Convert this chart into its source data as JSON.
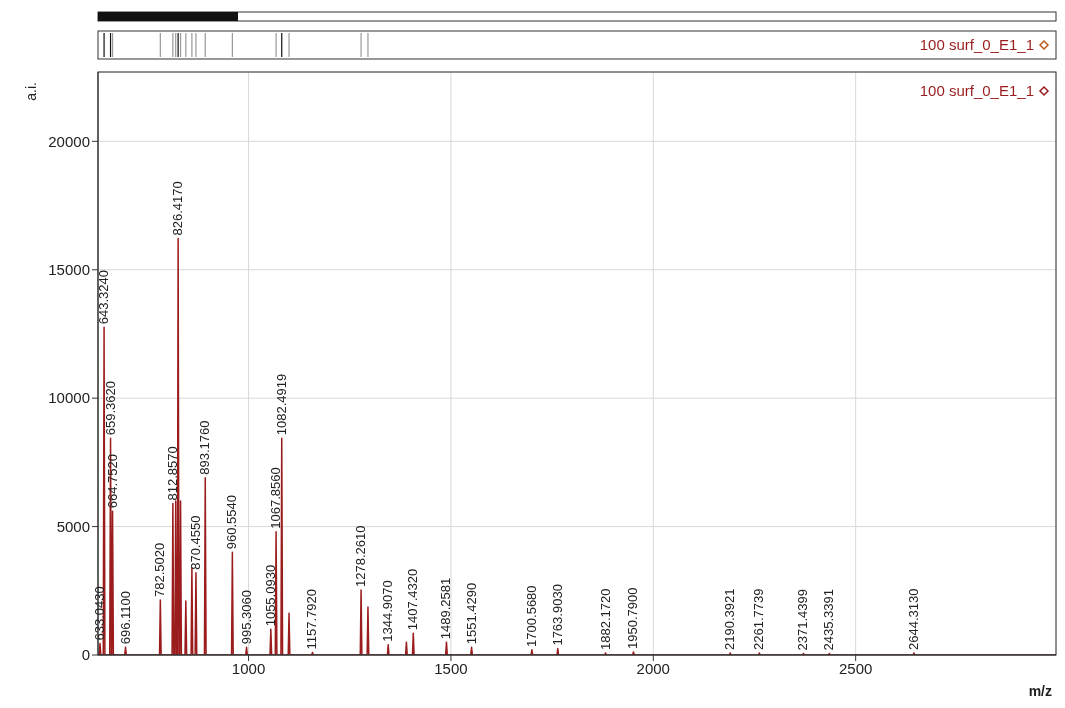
{
  "chart_data": {
    "type": "line",
    "xlabel": "m/z",
    "ylabel": "a.i.",
    "xlim": [
      628,
      2995
    ],
    "ylim": [
      0,
      22700
    ],
    "xticks": [
      1000,
      1500,
      2000,
      2500
    ],
    "yticks": [
      0,
      5000,
      10000,
      15000,
      20000
    ],
    "grid": true,
    "legend": "top right",
    "series": [
      {
        "name": "100 surf_0_E1_1",
        "color": "#9b1c1c",
        "x": [
          628,
          631,
          633,
          635,
          641,
          643,
          645,
          657,
          659,
          661,
          662,
          664,
          666,
          694,
          696,
          698,
          780,
          782,
          784,
          811,
          813,
          815,
          818,
          820,
          822,
          824,
          826,
          828,
          830,
          832,
          834,
          843,
          845,
          847,
          858,
          860,
          862,
          868,
          870,
          872,
          891,
          893,
          895,
          958,
          960,
          962,
          993,
          995,
          997,
          1053,
          1055,
          1057,
          1066,
          1068,
          1070,
          1080,
          1082,
          1084,
          1098,
          1100,
          1102,
          1156,
          1158,
          1160,
          1276,
          1278,
          1280,
          1293,
          1295,
          1297,
          1343,
          1345,
          1347,
          1388,
          1390,
          1392,
          1405,
          1407,
          1409,
          1487,
          1489,
          1491,
          1549,
          1551,
          1553,
          1698,
          1700,
          1702,
          1762,
          1764,
          1766,
          1880,
          1882,
          1884,
          1949,
          1951,
          1953,
          2188,
          2190,
          2192,
          2260,
          2262,
          2264,
          2369,
          2371,
          2373,
          2433,
          2435,
          2437,
          2642,
          2644,
          2646,
          2995
        ],
        "values": [
          0,
          0,
          450,
          0,
          0,
          12760,
          0,
          0,
          8440,
          0,
          0,
          5600,
          0,
          0,
          300,
          0,
          0,
          2140,
          0,
          0,
          5900,
          0,
          0,
          6000,
          0,
          0,
          16220,
          0,
          0,
          6000,
          0,
          0,
          2100,
          0,
          0,
          3400,
          0,
          0,
          3200,
          0,
          0,
          6900,
          0,
          0,
          4000,
          0,
          0,
          300,
          0,
          0,
          1000,
          0,
          0,
          4800,
          0,
          0,
          8440,
          0,
          0,
          1630,
          0,
          0,
          100,
          0,
          0,
          2530,
          0,
          0,
          1870,
          0,
          0,
          400,
          0,
          0,
          500,
          0,
          0,
          850,
          0,
          0,
          500,
          0,
          0,
          300,
          0,
          0,
          200,
          0,
          0,
          250,
          0,
          0,
          80,
          0,
          0,
          120,
          0,
          0,
          80,
          0,
          0,
          80,
          0,
          0,
          60,
          0,
          0,
          60,
          0,
          0,
          80,
          0,
          0
        ]
      }
    ],
    "annotations": [
      {
        "text": "633.0430",
        "x": 633,
        "y": 450
      },
      {
        "text": "643.3240",
        "x": 643,
        "y": 12760
      },
      {
        "text": "659.3620",
        "x": 659,
        "y": 8440
      },
      {
        "text": "664.7520",
        "x": 664,
        "y": 5600
      },
      {
        "text": "696.1100",
        "x": 696,
        "y": 300
      },
      {
        "text": "782.5020",
        "x": 782,
        "y": 2140
      },
      {
        "text": "812.8570",
        "x": 813,
        "y": 5900
      },
      {
        "text": "826.4170",
        "x": 826,
        "y": 16220
      },
      {
        "text": "870.4550",
        "x": 870,
        "y": 3200
      },
      {
        "text": "893.1760",
        "x": 893,
        "y": 6900
      },
      {
        "text": "960.5540",
        "x": 960,
        "y": 4000
      },
      {
        "text": "995.3060",
        "x": 995,
        "y": 300
      },
      {
        "text": "1055.0930",
        "x": 1055,
        "y": 1000
      },
      {
        "text": "1067.8560",
        "x": 1068,
        "y": 4800
      },
      {
        "text": "1082.4919",
        "x": 1082,
        "y": 8440
      },
      {
        "text": "1157.7920",
        "x": 1158,
        "y": 100
      },
      {
        "text": "1278.2610",
        "x": 1278,
        "y": 2530
      },
      {
        "text": "1344.9070",
        "x": 1345,
        "y": 400
      },
      {
        "text": "1407.4320",
        "x": 1407,
        "y": 850
      },
      {
        "text": "1489.2581",
        "x": 1489,
        "y": 500
      },
      {
        "text": "1551.4290",
        "x": 1551,
        "y": 300
      },
      {
        "text": "1700.5680",
        "x": 1700,
        "y": 200
      },
      {
        "text": "1763.9030",
        "x": 1764,
        "y": 250
      },
      {
        "text": "1882.1720",
        "x": 1882,
        "y": 80
      },
      {
        "text": "1950.7900",
        "x": 1951,
        "y": 120
      },
      {
        "text": "2190.3921",
        "x": 2190,
        "y": 80
      },
      {
        "text": "2261.7739",
        "x": 2262,
        "y": 80
      },
      {
        "text": "2371.4399",
        "x": 2371,
        "y": 60
      },
      {
        "text": "2435.3391",
        "x": 2435,
        "y": 60
      },
      {
        "text": "2644.3130",
        "x": 2644,
        "y": 80
      }
    ]
  }
}
